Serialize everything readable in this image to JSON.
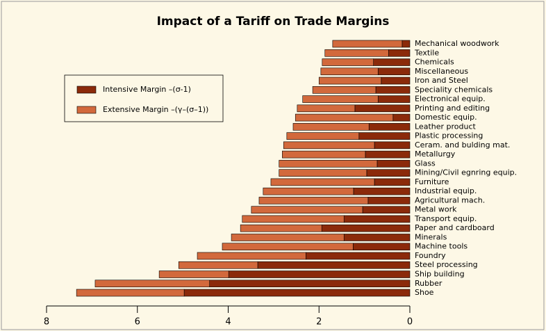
{
  "chart_data": {
    "type": "stacked-barh",
    "title": "Impact of a Tariff on Trade Margins",
    "categories": [
      "Mechanical woodwork",
      "Textile",
      "Chemicals",
      "Miscellaneous",
      "Iron and Steel",
      "Speciality chemicals",
      "Electronical equip.",
      "Printing and editing",
      "Domestic equip.",
      "Leather product",
      "Plastic processing",
      "Ceram. and bulding mat.",
      "Metallurgy",
      "Glass",
      "Mining/Civil egnring equip.",
      "Furniture",
      "Industrial equip.",
      "Agricultural mach.",
      "Metal work",
      "Transport equip.",
      "Paper and cardboard",
      "Minerals",
      "Machine tools",
      "Foundry",
      "Steel processing",
      "Ship building",
      "Rubber",
      "Shoe"
    ],
    "series": [
      {
        "name": "Intensive Margin –(σ-1)",
        "color": "#8b2a0a",
        "values": [
          0.17,
          0.47,
          0.8,
          0.7,
          0.63,
          0.75,
          0.7,
          1.21,
          0.37,
          0.9,
          1.12,
          0.78,
          0.98,
          0.72,
          0.95,
          0.78,
          1.24,
          0.92,
          1.04,
          1.45,
          1.94,
          1.45,
          1.25,
          2.29,
          3.35,
          3.99,
          4.41,
          4.97
        ]
      },
      {
        "name": "Extensive Margin –(γ–(σ–1))",
        "color": "#d2693c",
        "values": [
          1.53,
          1.4,
          1.13,
          1.26,
          1.37,
          1.39,
          1.66,
          1.27,
          2.15,
          1.67,
          1.59,
          2.0,
          1.83,
          2.16,
          1.93,
          2.28,
          1.99,
          2.4,
          2.45,
          2.24,
          1.79,
          2.48,
          2.88,
          2.39,
          1.74,
          1.53,
          2.52,
          2.37
        ]
      }
    ],
    "xlim": [
      8,
      0
    ],
    "xticks": [
      8,
      6,
      4,
      2,
      0
    ],
    "legend": "upper-left"
  }
}
